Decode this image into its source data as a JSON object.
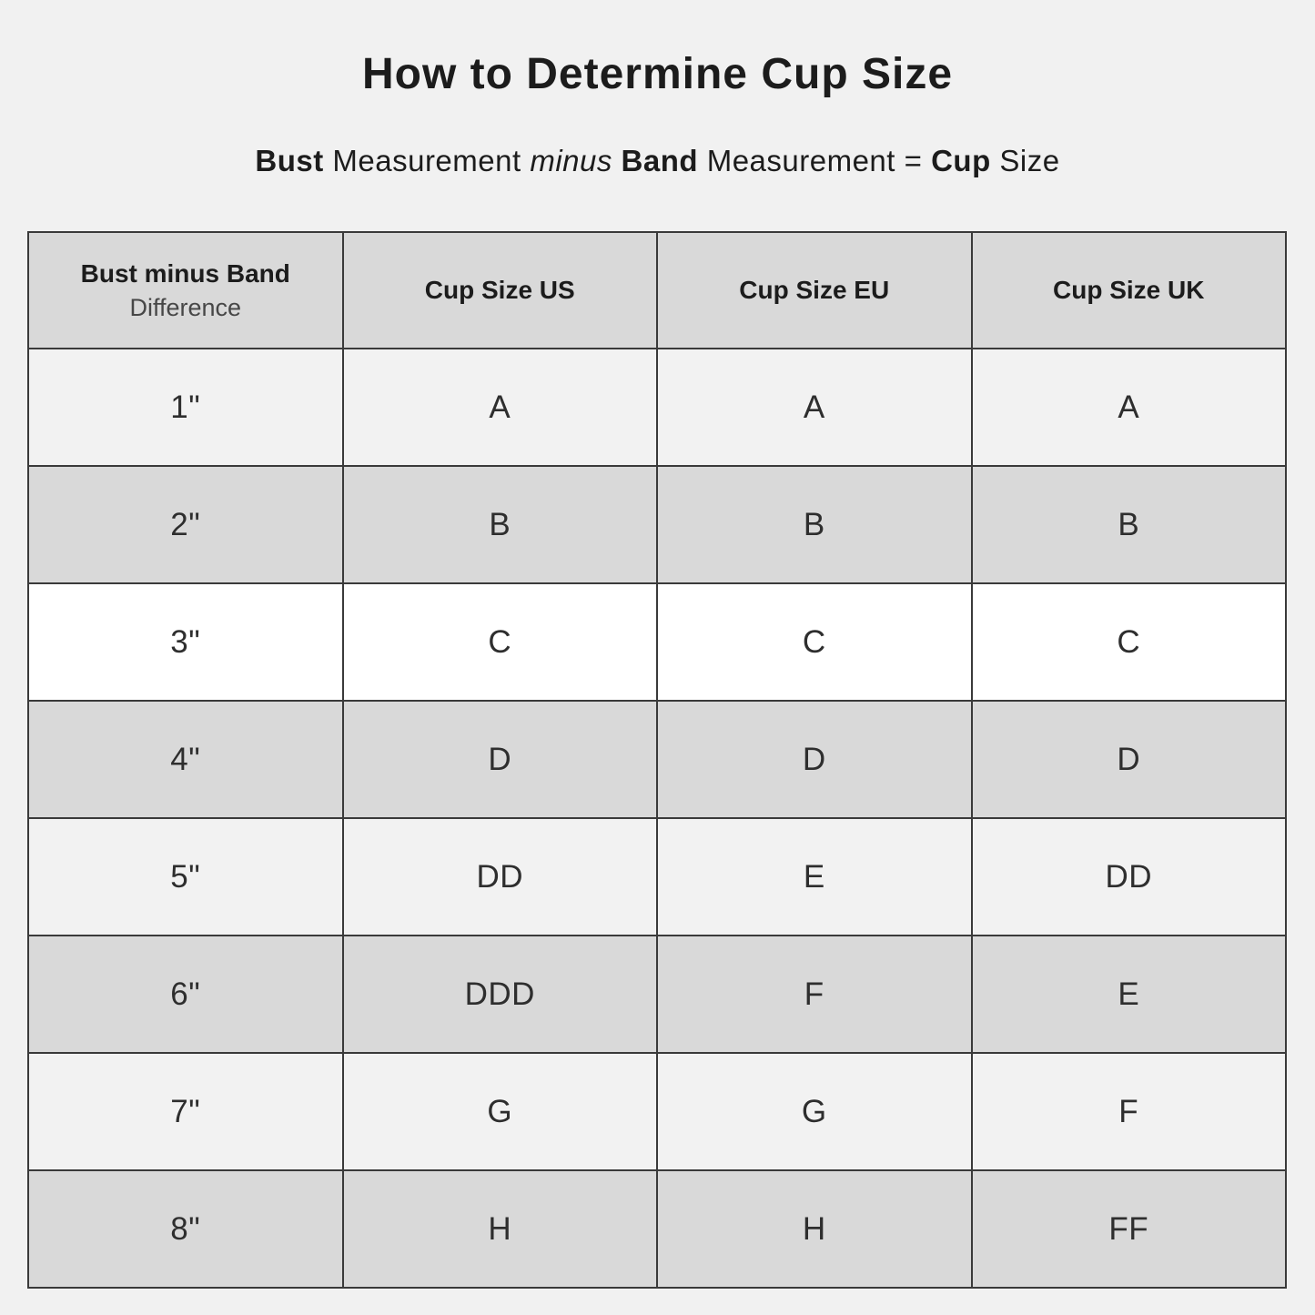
{
  "page": {
    "title": "How to Determine Cup Size",
    "subtitle": {
      "bust": "Bust",
      "measurement_1": "Measurement",
      "minus": "minus",
      "band": "Band",
      "measurement_2": "Measurement",
      "equals": "=",
      "cup": "Cup",
      "size": "Size"
    }
  },
  "colors": {
    "page_bg": "#f1f1f1",
    "header_bg": "#d9d9d9",
    "row_light": "#f2f2f2",
    "row_dark": "#d9d9d9",
    "row_white": "#ffffff",
    "border": "#3a3a3a",
    "text": "#1c1c1c"
  },
  "table": {
    "columns": [
      {
        "title": "Bust minus Band",
        "subtitle": "Difference"
      },
      {
        "title": "Cup Size US"
      },
      {
        "title": "Cup Size EU"
      },
      {
        "title": "Cup Size UK"
      }
    ],
    "rows": [
      {
        "difference": "1\"",
        "us": "A",
        "eu": "A",
        "uk": "A"
      },
      {
        "difference": "2\"",
        "us": "B",
        "eu": "B",
        "uk": "B"
      },
      {
        "difference": "3\"",
        "us": "C",
        "eu": "C",
        "uk": "C"
      },
      {
        "difference": "4\"",
        "us": "D",
        "eu": "D",
        "uk": "D"
      },
      {
        "difference": "5\"",
        "us": "DD",
        "eu": "E",
        "uk": "DD"
      },
      {
        "difference": "6\"",
        "us": "DDD",
        "eu": "F",
        "uk": "E"
      },
      {
        "difference": "7\"",
        "us": "G",
        "eu": "G",
        "uk": "F"
      },
      {
        "difference": "8\"",
        "us": "H",
        "eu": "H",
        "uk": "FF"
      }
    ]
  }
}
